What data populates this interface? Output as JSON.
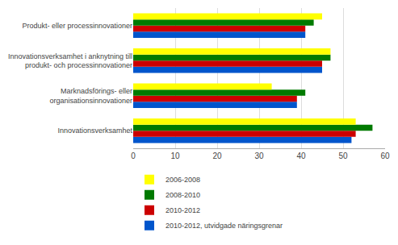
{
  "chart_data": {
    "type": "bar",
    "orientation": "horizontal",
    "categories": [
      "Innovationsverksamhet",
      "Marknadsförings- eller\norganisationsinnovationer",
      "Innovationsverksamhet i anknytning till\nprodukt- och processinnovationer",
      "Produkt- eller processinnovationer"
    ],
    "series": [
      {
        "name": "2006-2008",
        "color": "#ffff00",
        "values": [
          53,
          33,
          47,
          45
        ]
      },
      {
        "name": "2008-2010",
        "color": "#007a00",
        "values": [
          57,
          41,
          47,
          43
        ]
      },
      {
        "name": "2010-2012",
        "color": "#cc0000",
        "values": [
          53,
          39,
          45,
          41
        ]
      },
      {
        "name": "2010-2012, utvidgade näringsgrenar",
        "color": "#0055cc",
        "values": [
          52,
          39,
          45,
          41
        ]
      }
    ],
    "xlim": [
      0,
      60
    ],
    "xticks": [
      0,
      10,
      20,
      30,
      40,
      50,
      60
    ],
    "grid": true,
    "legend": "bottom"
  }
}
